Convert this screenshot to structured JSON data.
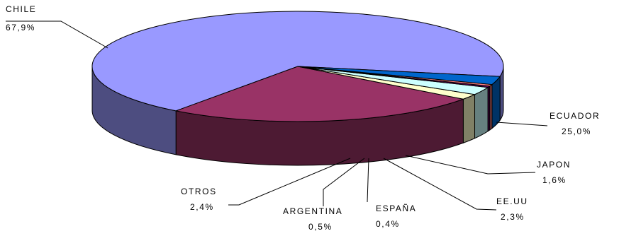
{
  "chart_data": {
    "type": "pie",
    "style": "3d",
    "title": "",
    "slices": [
      {
        "label": "CHILE",
        "value_text": "67,9%",
        "value": 67.9,
        "color": "#9999FF",
        "side_color": "#4D4D80"
      },
      {
        "label": "ECUADOR",
        "value_text": "25,0%",
        "value": 25.0,
        "color": "#993366",
        "side_color": "#4D1A33"
      },
      {
        "label": "JAPON",
        "value_text": "1,6%",
        "value": 1.6,
        "color": "#FFFFCC",
        "side_color": "#808066"
      },
      {
        "label": "EE.UU",
        "value_text": "2,3%",
        "value": 2.3,
        "color": "#CCFFFF",
        "side_color": "#668080"
      },
      {
        "label": "ESPAÑA",
        "value_text": "0,4%",
        "value": 0.4,
        "color": "#660066",
        "side_color": "#330033"
      },
      {
        "label": "ARGENTINA",
        "value_text": "0,5%",
        "value": 0.5,
        "color": "#FF8080",
        "side_color": "#804040"
      },
      {
        "label": "OTROS",
        "value_text": "2,4%",
        "value": 2.4,
        "color": "#0066CC",
        "side_color": "#003366"
      }
    ]
  }
}
